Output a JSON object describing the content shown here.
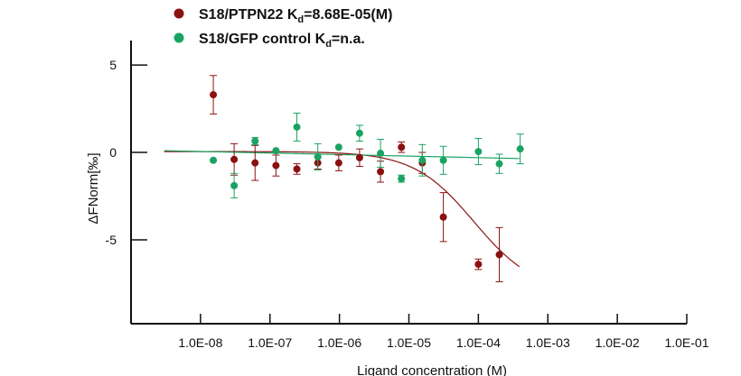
{
  "chart_data": {
    "type": "scatter",
    "xscale": "log",
    "xlim": [
      1e-09,
      0.1
    ],
    "ylim": [
      -9.8,
      6.4
    ],
    "xlabel": "Ligand concentration (M)",
    "ylabel": "ΔFNorm[‰]",
    "x_tick_labels": [
      "1.0E-08",
      "1.0E-07",
      "1.0E-06",
      "1.0E-05",
      "1.0E-04",
      "1.0E-03",
      "1.0E-02",
      "1.0E-01"
    ],
    "y_ticks": [
      5,
      0,
      -5
    ],
    "y_tick_labels": [
      "5",
      "0",
      "-5"
    ],
    "legend_position": "top-left",
    "series": [
      {
        "name": "S18/PTPN22",
        "kd_label": "K",
        "kd_sub": "d",
        "kd_value": "=8.68E-05(M)",
        "color": "#8b1111",
        "points": [
          {
            "x": 1.53e-08,
            "y": 3.3,
            "err": 1.1
          },
          {
            "x": 3.05e-08,
            "y": -0.4,
            "err": 0.9
          },
          {
            "x": 6.1e-08,
            "y": -0.6,
            "err": 1.0
          },
          {
            "x": 1.22e-07,
            "y": -0.75,
            "err": 0.6
          },
          {
            "x": 2.44e-07,
            "y": -0.95,
            "err": 0.3
          },
          {
            "x": 4.88e-07,
            "y": -0.6,
            "err": 0.35
          },
          {
            "x": 9.77e-07,
            "y": -0.6,
            "err": 0.45
          },
          {
            "x": 1.95e-06,
            "y": -0.3,
            "err": 0.5
          },
          {
            "x": 3.9e-06,
            "y": -1.1,
            "err": 0.6
          },
          {
            "x": 7.8e-06,
            "y": 0.3,
            "err": 0.3
          },
          {
            "x": 1.56e-05,
            "y": -0.6,
            "err": 0.6
          },
          {
            "x": 3.13e-05,
            "y": -3.7,
            "err": 1.4
          },
          {
            "x": 0.0001,
            "y": -6.4,
            "err": 0.3
          },
          {
            "x": 0.0002,
            "y": -5.85,
            "err": 1.55
          }
        ],
        "fit": {
          "bottom": 0.05,
          "top": -8.0,
          "kd": 8.68e-05,
          "x_range": [
            3e-09,
            0.00039
          ]
        }
      },
      {
        "name": "S18/GFP control",
        "kd_label": "K",
        "kd_sub": "d",
        "kd_value": "=n.a.",
        "color": "#1aa362",
        "points": [
          {
            "x": 1.53e-08,
            "y": -0.45,
            "err": 0
          },
          {
            "x": 3.05e-08,
            "y": -1.9,
            "err": 0.7
          },
          {
            "x": 6.1e-08,
            "y": 0.65,
            "err": 0.2
          },
          {
            "x": 1.22e-07,
            "y": 0.1,
            "err": 0
          },
          {
            "x": 2.44e-07,
            "y": 1.45,
            "err": 0.8
          },
          {
            "x": 4.88e-07,
            "y": -0.25,
            "err": 0.75
          },
          {
            "x": 9.77e-07,
            "y": 0.3,
            "err": 0
          },
          {
            "x": 1.95e-06,
            "y": 1.1,
            "err": 0.45
          },
          {
            "x": 3.9e-06,
            "y": -0.05,
            "err": 0.8
          },
          {
            "x": 7.8e-06,
            "y": -1.5,
            "err": 0.2
          },
          {
            "x": 1.56e-05,
            "y": -0.45,
            "err": 0.9
          },
          {
            "x": 3.13e-05,
            "y": -0.45,
            "err": 0.8
          },
          {
            "x": 0.0001,
            "y": 0.05,
            "err": 0.75
          },
          {
            "x": 0.0002,
            "y": -0.65,
            "err": 0.55
          },
          {
            "x": 0.0004,
            "y": 0.2,
            "err": 0.85
          }
        ],
        "fit": {
          "y0": 0.1,
          "y1": -0.35,
          "x_range": [
            3e-09,
            0.00039
          ]
        }
      }
    ]
  }
}
